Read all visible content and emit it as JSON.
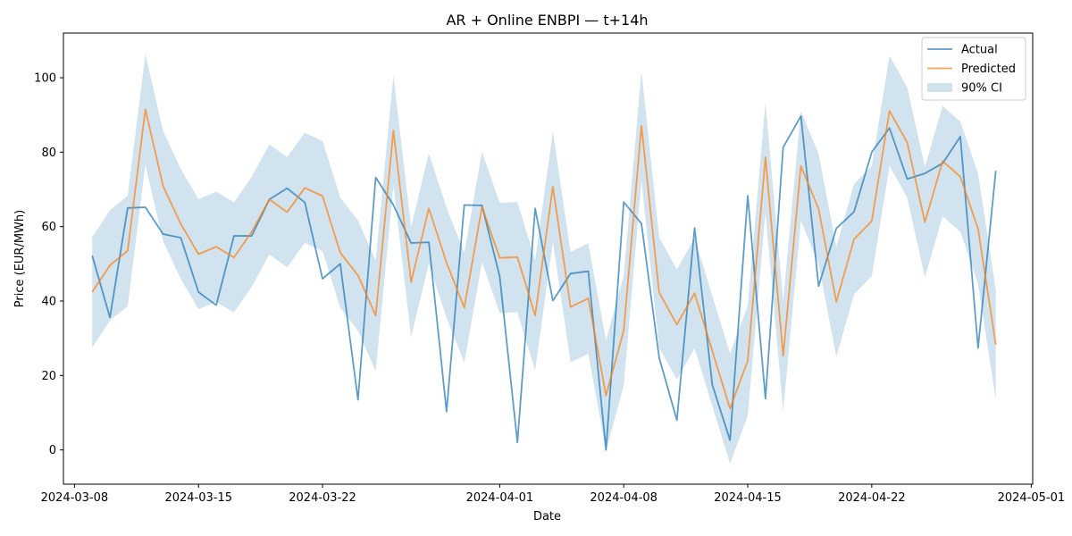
{
  "chart_data": {
    "type": "line",
    "title": "AR + Online ENBPI — t+14h",
    "xlabel": "Date",
    "ylabel": "Price (EUR/MWh)",
    "x_axis": "date",
    "xlim": [
      "2024-03-07T09:00",
      "2024-05-01T02:00"
    ],
    "ylim": [
      -9.2,
      112
    ],
    "x": [
      "2024-03-09",
      "2024-03-10",
      "2024-03-11",
      "2024-03-12",
      "2024-03-13",
      "2024-03-14",
      "2024-03-15",
      "2024-03-16",
      "2024-03-17",
      "2024-03-18",
      "2024-03-19",
      "2024-03-20",
      "2024-03-21",
      "2024-03-22",
      "2024-03-23",
      "2024-03-24",
      "2024-03-25",
      "2024-03-26",
      "2024-03-27",
      "2024-03-28",
      "2024-03-29",
      "2024-03-30",
      "2024-03-31",
      "2024-04-01",
      "2024-04-02",
      "2024-04-03",
      "2024-04-04",
      "2024-04-05",
      "2024-04-06",
      "2024-04-07",
      "2024-04-08",
      "2024-04-09",
      "2024-04-10",
      "2024-04-11",
      "2024-04-12",
      "2024-04-13",
      "2024-04-14",
      "2024-04-15",
      "2024-04-16",
      "2024-04-17",
      "2024-04-18",
      "2024-04-19",
      "2024-04-20",
      "2024-04-21",
      "2024-04-22",
      "2024-04-23",
      "2024-04-24",
      "2024-04-25",
      "2024-04-26",
      "2024-04-27",
      "2024-04-28",
      "2024-04-29"
    ],
    "x_ticks": [
      "2024-03-08",
      "2024-03-15",
      "2024-03-22",
      "2024-04-01",
      "2024-04-08",
      "2024-04-15",
      "2024-04-22",
      "2024-05-01"
    ],
    "y_ticks": [
      0,
      20,
      40,
      60,
      80,
      100
    ],
    "series": [
      {
        "name": "Actual",
        "color": "#1f77b4",
        "values": [
          52.2,
          35.6,
          65.0,
          65.2,
          58.0,
          57.0,
          42.4,
          38.9,
          57.5,
          57.5,
          67.3,
          70.3,
          66.5,
          46.0,
          50.0,
          13.5,
          73.2,
          65.8,
          55.6,
          55.8,
          10.3,
          65.8,
          65.7,
          46.6,
          2.0,
          64.9,
          40.1,
          47.4,
          48.0,
          0.0,
          66.6,
          60.8,
          24.8,
          8.0,
          59.6,
          17.5,
          2.6,
          68.3,
          13.8,
          81.3,
          89.7,
          44.0,
          59.5,
          64.0,
          80.0,
          86.5,
          72.8,
          74.3,
          77.0,
          84.2,
          27.4,
          75.0
        ]
      },
      {
        "name": "Predicted",
        "color": "#ff7f0e",
        "values": [
          42.4,
          49.6,
          53.5,
          91.5,
          70.9,
          60.7,
          52.6,
          54.6,
          51.7,
          58.6,
          67.3,
          63.9,
          70.4,
          68.2,
          53.0,
          46.9,
          36.1,
          85.8,
          45.1,
          64.9,
          50.3,
          38.2,
          65.3,
          51.6,
          51.8,
          36.1,
          70.7,
          38.4,
          40.7,
          14.6,
          32.1,
          87.1,
          42.3,
          33.7,
          42.1,
          26.6,
          11.1,
          24.0,
          78.6,
          25.3,
          76.3,
          64.7,
          39.8,
          56.6,
          61.5,
          91.1,
          82.6,
          61.2,
          77.6,
          73.4,
          59.4,
          28.3
        ]
      }
    ],
    "band": {
      "name": "90% CI",
      "color": "#a6c8e1",
      "lower": [
        27.5,
        34.8,
        38.6,
        76.7,
        56.1,
        45.9,
        37.8,
        39.8,
        36.9,
        43.8,
        52.5,
        49.1,
        55.6,
        53.4,
        38.2,
        32.1,
        21.2,
        71.0,
        30.3,
        50.1,
        35.5,
        23.4,
        50.5,
        36.8,
        37.0,
        21.3,
        55.9,
        23.6,
        25.8,
        -0.2,
        17.3,
        72.3,
        27.5,
        18.9,
        27.3,
        11.8,
        -3.7,
        9.2,
        63.8,
        10.5,
        61.5,
        49.9,
        25.0,
        41.8,
        46.7,
        76.3,
        67.8,
        46.4,
        62.8,
        58.6,
        44.6,
        13.5
      ],
      "upper": [
        57.2,
        64.4,
        68.3,
        106.3,
        85.7,
        75.5,
        67.4,
        69.4,
        66.5,
        73.4,
        82.1,
        78.7,
        85.2,
        83.0,
        67.8,
        61.7,
        50.9,
        100.6,
        59.9,
        79.7,
        65.1,
        53.0,
        80.1,
        66.4,
        66.6,
        50.9,
        85.5,
        53.2,
        55.5,
        29.4,
        46.9,
        101.9,
        57.1,
        48.5,
        56.9,
        41.4,
        25.9,
        38.8,
        93.4,
        40.1,
        91.1,
        79.5,
        54.6,
        71.4,
        76.3,
        105.9,
        97.4,
        76.0,
        92.4,
        88.2,
        74.2,
        43.1
      ]
    },
    "legend": {
      "position": "top-right",
      "entries": [
        "Actual",
        "Predicted",
        "90% CI"
      ]
    },
    "grid": false
  }
}
